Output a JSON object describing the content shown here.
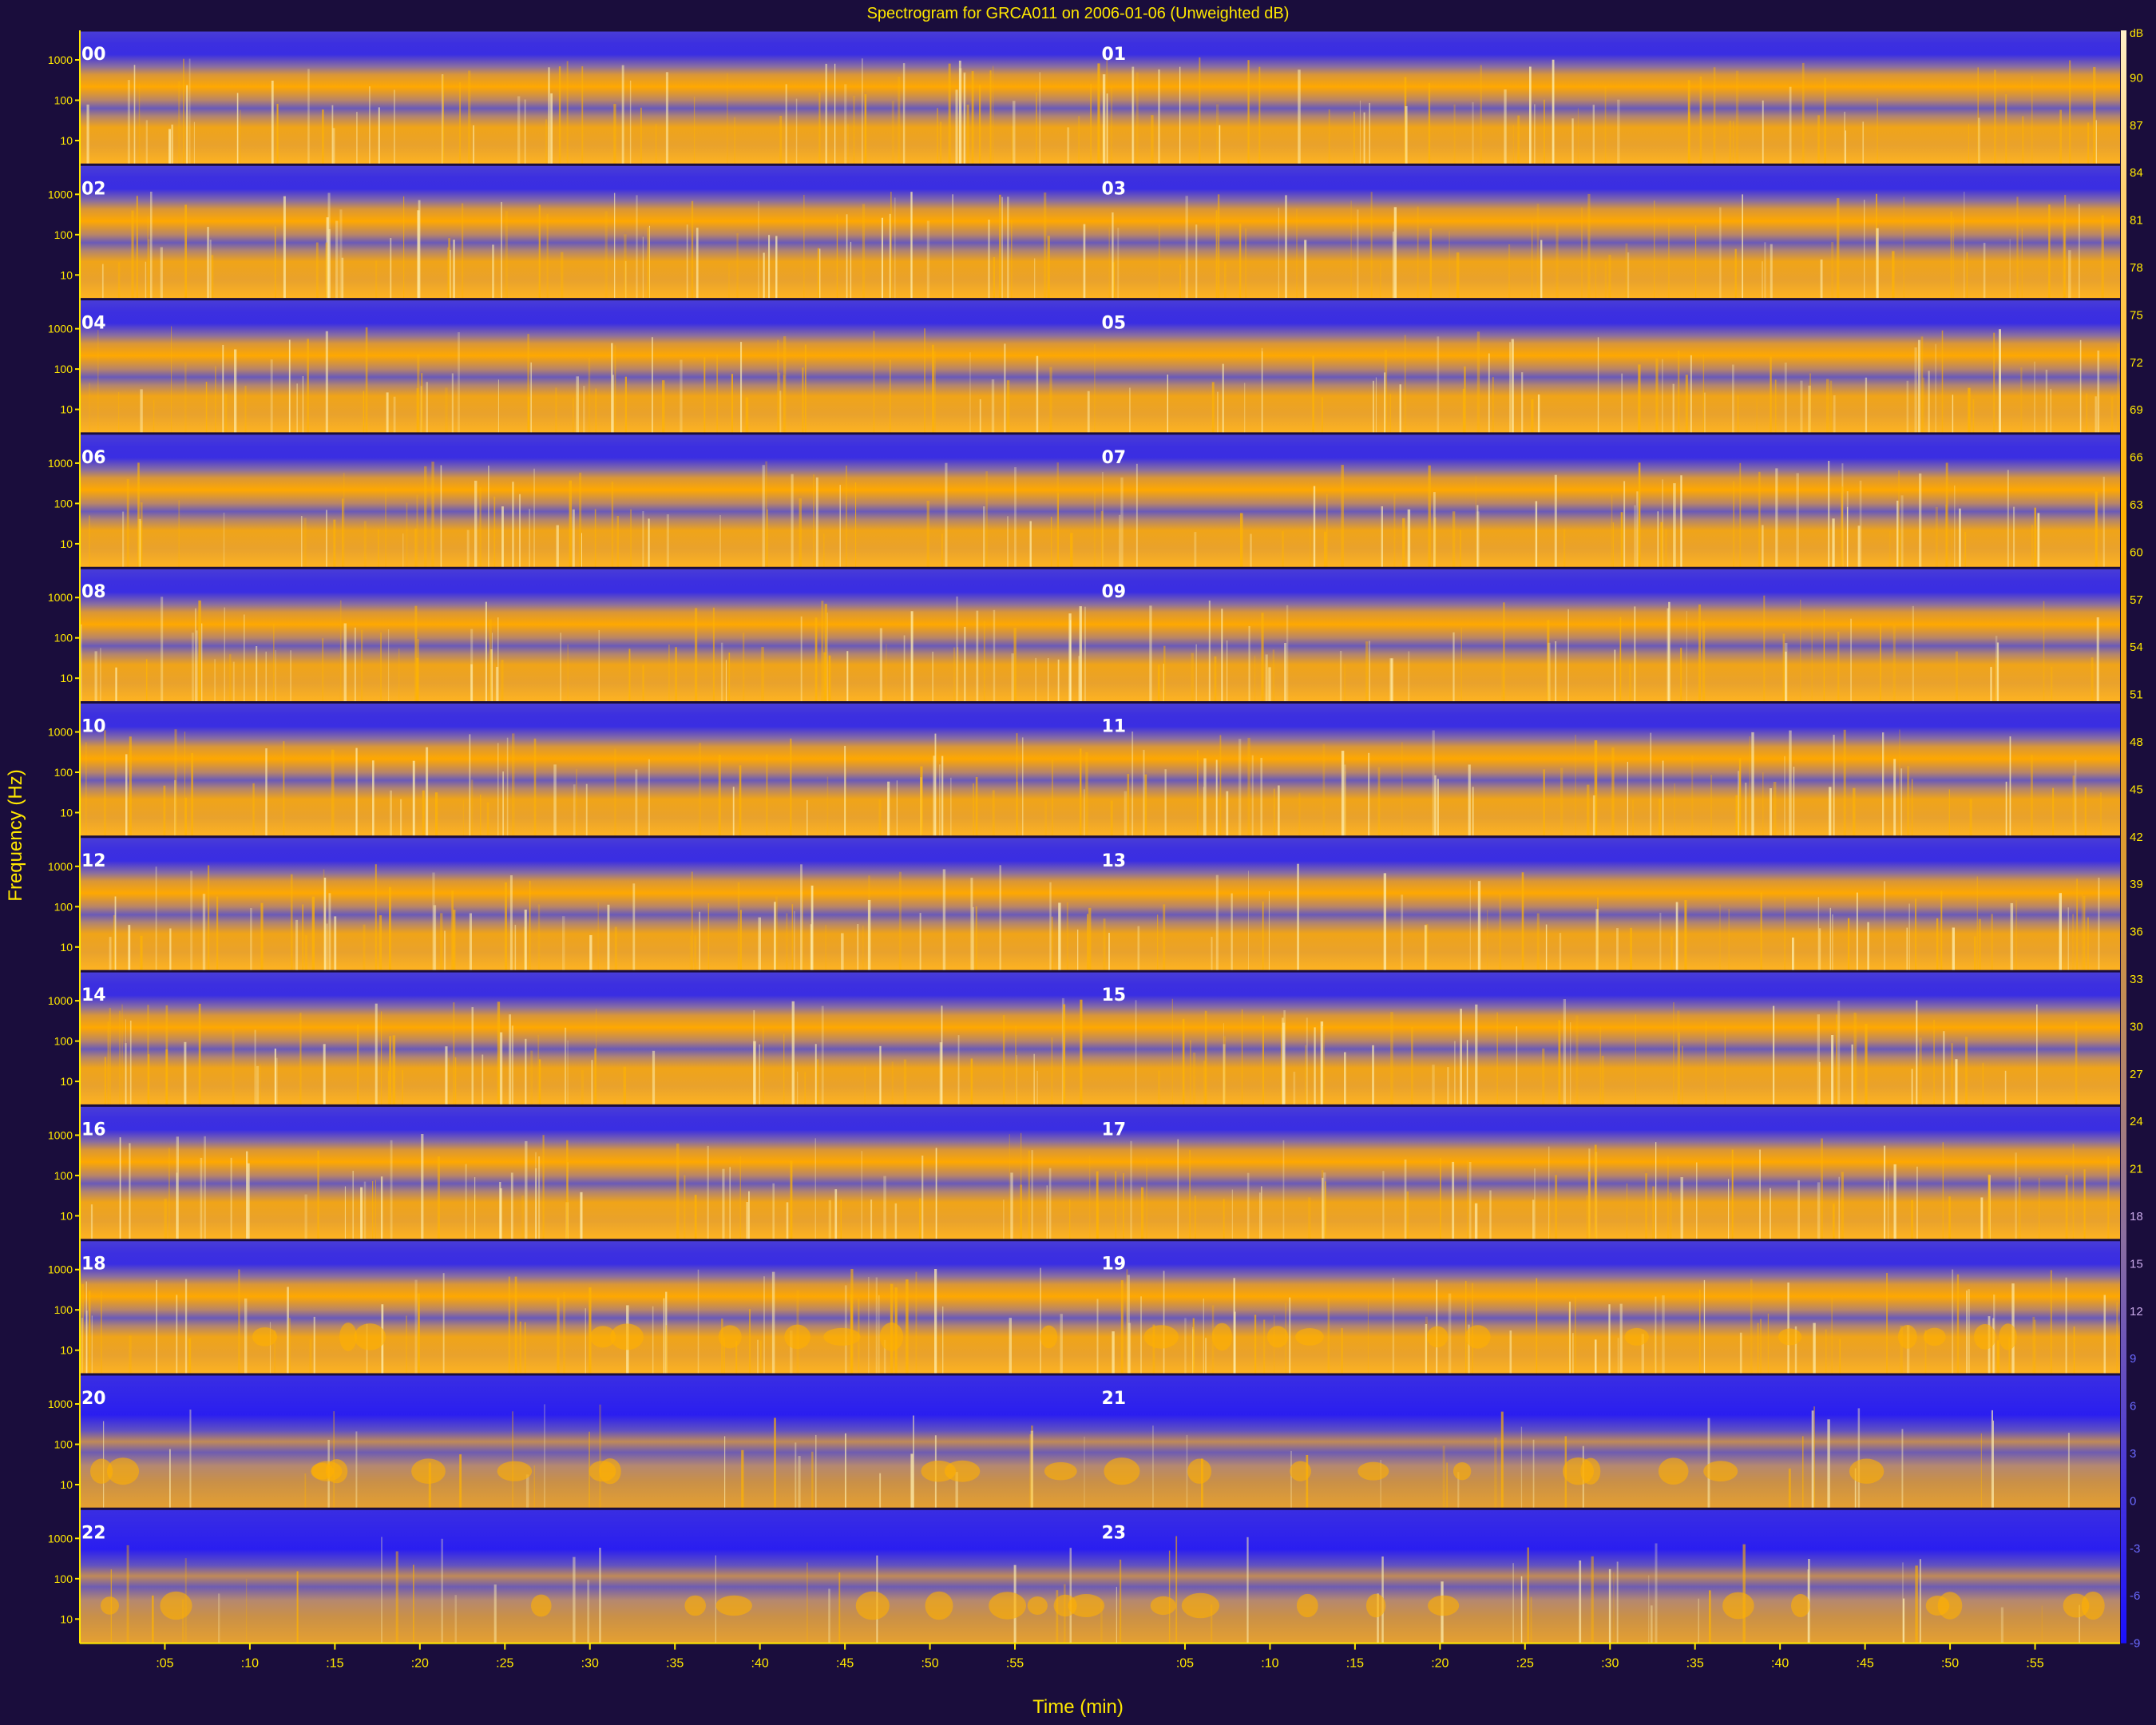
{
  "chart_data": {
    "type": "heatmap",
    "title": "Spectrogram for GRCA011 on 2006-01-06 (Unweighted dB)",
    "xlabel": "Time (min)",
    "ylabel": "Frequency (Hz)",
    "rows": [
      {
        "left": "00",
        "right": "01"
      },
      {
        "left": "02",
        "right": "03"
      },
      {
        "left": "04",
        "right": "05"
      },
      {
        "left": "06",
        "right": "07"
      },
      {
        "left": "08",
        "right": "09"
      },
      {
        "left": "10",
        "right": "11"
      },
      {
        "left": "12",
        "right": "13"
      },
      {
        "left": "14",
        "right": "15"
      },
      {
        "left": "16",
        "right": "17"
      },
      {
        "left": "18",
        "right": "19"
      },
      {
        "left": "20",
        "right": "21"
      },
      {
        "left": "22",
        "right": "23"
      }
    ],
    "y_tick_labels": [
      "1000",
      "100",
      "10"
    ],
    "x_ticks": [
      {
        "minute": 5,
        "label": ":05"
      },
      {
        "minute": 10,
        "label": ":10"
      },
      {
        "minute": 15,
        "label": ":15"
      },
      {
        "minute": 20,
        "label": ":20"
      },
      {
        "minute": 25,
        "label": ":25"
      },
      {
        "minute": 30,
        "label": ":30"
      },
      {
        "minute": 35,
        "label": ":35"
      },
      {
        "minute": 40,
        "label": ":40"
      },
      {
        "minute": 45,
        "label": ":45"
      },
      {
        "minute": 50,
        "label": ":50"
      },
      {
        "minute": 55,
        "label": ":55"
      },
      {
        "minute": 65,
        "label": ":05"
      },
      {
        "minute": 70,
        "label": ":10"
      },
      {
        "minute": 75,
        "label": ":15"
      },
      {
        "minute": 80,
        "label": ":20"
      },
      {
        "minute": 85,
        "label": ":25"
      },
      {
        "minute": 90,
        "label": ":30"
      },
      {
        "minute": 95,
        "label": ":35"
      },
      {
        "minute": 100,
        "label": ":40"
      },
      {
        "minute": 105,
        "label": ":45"
      },
      {
        "minute": 110,
        "label": ":50"
      },
      {
        "minute": 115,
        "label": ":55"
      }
    ],
    "x_range_minutes": [
      0,
      120
    ],
    "colorbar": {
      "unit": "dB",
      "min": -9,
      "max": 93,
      "ticks": [
        90,
        87,
        84,
        81,
        78,
        75,
        72,
        69,
        66,
        63,
        60,
        57,
        54,
        51,
        48,
        45,
        42,
        39,
        36,
        33,
        30,
        27,
        24,
        21,
        18,
        15,
        12,
        9,
        6,
        3,
        0,
        -3,
        -6,
        -9
      ],
      "colormap": [
        "#1a10ff",
        "#5a46c8",
        "#a07a8c",
        "#e09a3c",
        "#ffb000",
        "#ffe0a0"
      ]
    },
    "colors": {
      "background": "#1a0d3c",
      "text": "#ffe800",
      "low": "#2a20d8",
      "high": "#ffae00"
    },
    "grid": false
  }
}
